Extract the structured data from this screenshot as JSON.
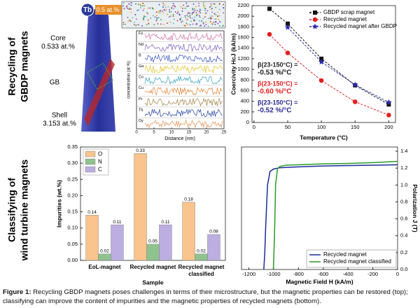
{
  "side_labels": [
    [
      "Recycling of",
      "GBDP magnets"
    ],
    [
      "Classifying of",
      "wind turbine magnets"
    ]
  ],
  "apt_image": {
    "element": "Tb",
    "cu_label": "0.5 at.% Cu",
    "regions": [
      {
        "name": "Core",
        "value": "0.533 at.%"
      },
      {
        "name": "GB"
      },
      {
        "name": "Shell",
        "value": "3.153 at.%"
      }
    ]
  },
  "apt_profile": {
    "elements": [
      "Fe",
      "Nd",
      "B",
      "Ga",
      "Co",
      "Cu",
      "Pr",
      "Tb",
      "Dy"
    ],
    "ylabel": "concentration (at.%)",
    "xlabel": "Distance (nm)",
    "xticks": [
      0,
      5,
      10,
      15,
      20,
      25
    ]
  },
  "chart_data": [
    {
      "type": "line",
      "xlabel": "Temperature (°C)",
      "ylabel": "Coercivity HcJ (kA/m)",
      "x": [
        23,
        50,
        100,
        150,
        200
      ],
      "series": [
        {
          "name": "GBDP scrap magnet",
          "color": "#111111",
          "marker": "s",
          "values": [
            2140,
            1860,
            1200,
            700,
            340
          ]
        },
        {
          "name": "Recycled magnet",
          "color": "#e02020",
          "marker": "o",
          "values": [
            1660,
            1310,
            790,
            390,
            140
          ]
        },
        {
          "name": "Recycled magnet after GBDP",
          "color": "#2a2ab0",
          "marker": "*",
          "values": [
            null,
            1790,
            1140,
            710,
            380
          ]
        }
      ],
      "xlim": [
        -3,
        210
      ],
      "xticks": [
        0,
        50,
        100,
        150,
        200
      ],
      "ylim": [
        0,
        2200
      ],
      "yticks": [
        0,
        200,
        400,
        600,
        800,
        1000,
        1200,
        1400,
        1600,
        1800,
        2000,
        2200
      ],
      "linestyle": "dashed",
      "legend": "upper right",
      "annotations": [
        {
          "text": "β(23-150°C) =",
          "value": "-0.53 %/°C",
          "color": "#222222"
        },
        {
          "text": "β(23-150°C) =",
          "value": "-0.60 %/°C",
          "color": "#e02020"
        },
        {
          "text": "β(23-150°C) =",
          "value": "-0.52 %/°C",
          "color": "#2a2a90"
        }
      ]
    },
    {
      "type": "bar",
      "xlabel": "Sample",
      "ylabel": "Impurities (wt.%)",
      "categories": [
        "EoL-magnet",
        "Recycled magnet",
        "Recycled magnet classified"
      ],
      "series": [
        {
          "name": "O",
          "color": "#f9c48e",
          "values": [
            0.14,
            0.33,
            0.18
          ]
        },
        {
          "name": "N",
          "color": "#8fc28f",
          "values": [
            0.02,
            0.05,
            0.02
          ]
        },
        {
          "name": "C",
          "color": "#bcaee0",
          "values": [
            0.11,
            0.11,
            0.08
          ]
        }
      ],
      "ylim": [
        0,
        0.35
      ],
      "yticks": [
        {
          "value": 0,
          "label": "0.00"
        },
        0.05,
        {
          "value": 0.1,
          "label": "0.10"
        },
        0.15,
        {
          "value": 0.2,
          "label": "0.20"
        },
        0.25,
        {
          "value": 0.3,
          "label": "0.30"
        },
        0.35
      ],
      "data_labels": true,
      "legend": "upper left"
    },
    {
      "type": "line",
      "xlabel": "Magnetic Field H (kA/m)",
      "ylabel": "Polarization J (T)",
      "y_axis_side": "right",
      "series": [
        {
          "name": "Recycled magnet",
          "color": "#1c2a9c",
          "x": [
            0,
            -200,
            -400,
            -600,
            -800,
            -950,
            -1000,
            -1030,
            -1050,
            -1065,
            -1072,
            -1080
          ],
          "values": [
            1.24,
            1.235,
            1.23,
            1.225,
            1.215,
            1.205,
            1.19,
            1.16,
            1.0,
            0.5,
            0.2,
            0
          ]
        },
        {
          "name": "Recycled magnet classified",
          "color": "#2a9a2a",
          "x": [
            0,
            -200,
            -400,
            -600,
            -800,
            -900,
            -950,
            -970,
            -985,
            -992,
            -998,
            -1003
          ],
          "values": [
            1.28,
            1.265,
            1.255,
            1.25,
            1.24,
            1.235,
            1.22,
            1.19,
            1.0,
            0.5,
            0.2,
            0
          ]
        }
      ],
      "xlim": [
        -1260,
        0
      ],
      "xticks": [
        -1200,
        -1000,
        -800,
        -600,
        -400,
        -200,
        0
      ],
      "ylim": [
        0,
        1.45
      ],
      "yticks": [
        {
          "value": 0,
          "label": "0.0"
        },
        0.2,
        0.4,
        0.6,
        0.8,
        {
          "value": 1,
          "label": "1.0"
        },
        1.2,
        1.4
      ],
      "linestyle": "solid",
      "legend": "lower right"
    }
  ],
  "caption": {
    "label": "Figure 1:",
    "text": "Recycling GBDP magnets poses challenges in terms of their microstructure, but the magnetic properties can be restored (top); classifying can improve the content of impurities and the magnetic properties of recycled magnets (bottom)."
  }
}
